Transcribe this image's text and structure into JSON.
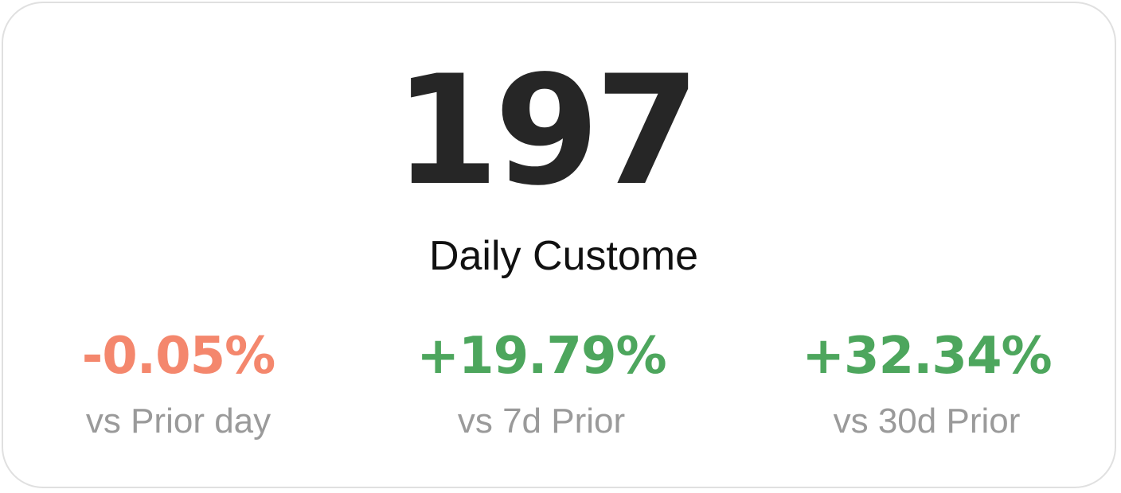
{
  "kpi": {
    "value": "197",
    "label": "Daily Custome",
    "value_color": "#262626",
    "label_color": "#111111"
  },
  "comparisons": [
    {
      "value": "-0.05%",
      "caption": "vs Prior day",
      "color": "#f4876d"
    },
    {
      "value": "+19.79%",
      "caption": "vs 7d Prior",
      "color": "#4da65d"
    },
    {
      "value": "+32.34%",
      "caption": "vs 30d Prior",
      "color": "#4da65d"
    }
  ],
  "caption_color": "#9a9a9a"
}
